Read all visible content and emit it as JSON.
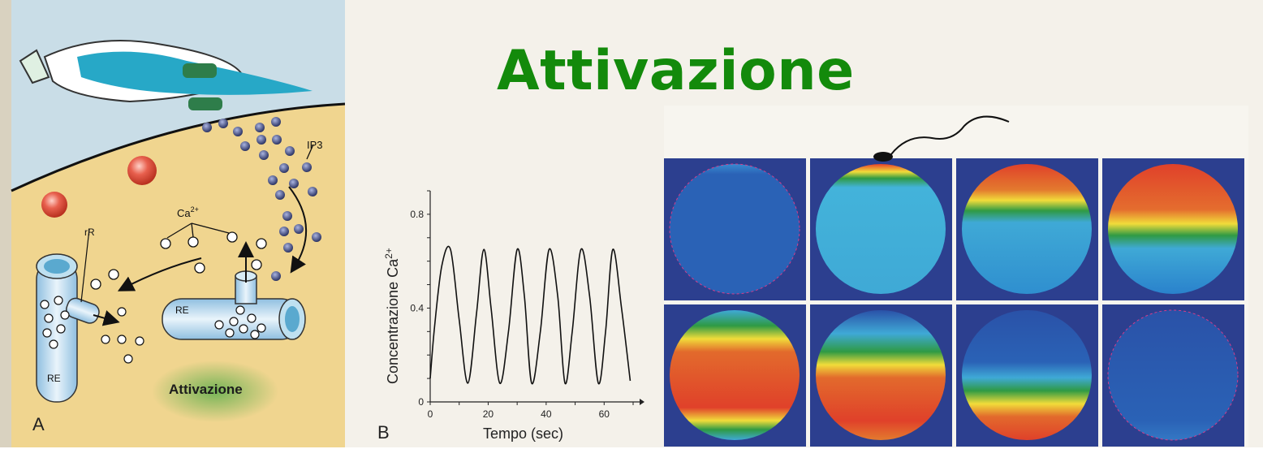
{
  "title": "Attivazione",
  "panel_a": {
    "letter": "A",
    "label_ip3": "IP3",
    "label_ca": "Ca",
    "label_ca_sup": "2+",
    "label_rr": "rR",
    "label_re_left": "RE",
    "label_re_right": "RE",
    "label_activation": "Attivazione"
  },
  "panel_b": {
    "letter": "B",
    "xlabel": "Tempo (sec)",
    "ylabel": "Concentrazione Ca",
    "ylabel_sup": "2+"
  },
  "chart_data": {
    "type": "line",
    "title": "",
    "xlabel": "Tempo (sec)",
    "ylabel": "Concentrazione Ca2+",
    "xlim": [
      0,
      70
    ],
    "ylim": [
      0,
      0.9
    ],
    "xticks": [
      0,
      20,
      40,
      60
    ],
    "yticks": [
      0,
      0.4,
      0.8
    ],
    "grid": false,
    "series": [
      {
        "values_description_free": true,
        "x": [
          0,
          1.5,
          4,
          7,
          10,
          13,
          16,
          18.5,
          21,
          24,
          27,
          30,
          32.5,
          35,
          38,
          41,
          44,
          46.5,
          49,
          52,
          55,
          58,
          60.5,
          63,
          66,
          69
        ],
        "y": [
          0.1,
          0.32,
          0.58,
          0.65,
          0.35,
          0.08,
          0.38,
          0.65,
          0.4,
          0.08,
          0.3,
          0.65,
          0.45,
          0.08,
          0.3,
          0.65,
          0.45,
          0.08,
          0.3,
          0.65,
          0.45,
          0.08,
          0.3,
          0.65,
          0.4,
          0.09
        ]
      }
    ]
  },
  "colors": {
    "title": "#138a0b",
    "panel_c_background": "#2c3f8f",
    "cell_blue": "#2a62b6",
    "cell_cyan": "#3fa9d6",
    "wave_green": "#2f9a44",
    "wave_yellow": "#f1dc3a",
    "wave_red": "#e0412a"
  }
}
